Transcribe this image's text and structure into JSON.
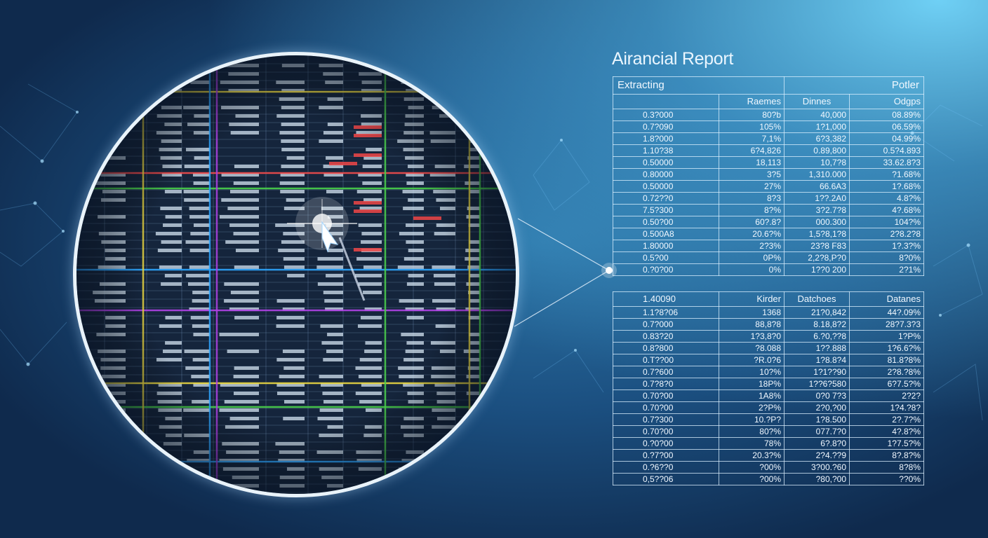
{
  "report": {
    "title": "Airancial Report",
    "table1": {
      "caption_left": "Extracting",
      "caption_right": "Potler",
      "headers": [
        "",
        "Raemes",
        "Dinnes",
        "Odgps"
      ],
      "rows": [
        [
          "0.3?000",
          "80?b",
          "40,000",
          "08.89%"
        ],
        [
          "0.7?090",
          "105%",
          "1?1,000",
          "06.59%"
        ],
        [
          "1.8?000",
          "7,1%",
          "6?3,382",
          "04.99%"
        ],
        [
          "1.10?38",
          "6?4,826",
          "0.89,800",
          "0.5?4.893"
        ],
        [
          "0.50000",
          "18,113",
          "10,7?8",
          "33.62.8?3"
        ],
        [
          "0.80000",
          "3?5",
          "1,310.000",
          "?1.68%"
        ],
        [
          "0.50000",
          "27%",
          "66.6A3",
          "1?.68%"
        ],
        [
          "0.72??0",
          "8?3",
          "1??.2A0",
          "4.8?%"
        ],
        [
          "7.5?300",
          "8?%",
          "3?2.7?8",
          "4?.68%"
        ],
        [
          "0.50?00",
          "60?.8?",
          "000.300",
          "104?%"
        ],
        [
          "0.500A8",
          "20.6?%",
          "1,5?8,1?8",
          "2?8.2?8"
        ],
        [
          "1.80000",
          "2?3%",
          "23?8 F83",
          "1?.3?%"
        ],
        [
          "0.5?00",
          "0P%",
          "2,2?8,P?0",
          "8?0%"
        ],
        [
          "0.?0?00",
          "0%",
          "1??0 200",
          "2?1%"
        ]
      ]
    },
    "table2": {
      "headers": [
        "1.40090",
        "Kirder",
        "Datchoes",
        "Datanes"
      ],
      "rows": [
        [
          "1.1?8?06",
          "1368",
          "21?0,842",
          "44?.09%"
        ],
        [
          "0.7?000",
          "88,8?8",
          "8.18,8?2",
          "28?7.3?3"
        ],
        [
          "0.83?20",
          "1?3,8?0",
          "6.?0,??8",
          "1?P%"
        ],
        [
          "0.8?800",
          "?8.088",
          "1??.888",
          "1?6.6?%"
        ],
        [
          "0.T??00",
          "?R.0?6",
          "1?8.8?4",
          "81.8?8%"
        ],
        [
          "0.7?600",
          "10?%",
          "1?1??90",
          "2?8.?8%"
        ],
        [
          "0.7?8?0",
          "18P%",
          "1??6?580",
          "6?7.5?%"
        ],
        [
          "0.70?00",
          "1A8%",
          "0?0 7?3",
          "2?2?"
        ],
        [
          "0.70?00",
          "2?P%",
          "2?0,?00",
          "1?4.?8?"
        ],
        [
          "0.7?300",
          "10.?P?",
          "1?8.500",
          "2?.7?%"
        ],
        [
          "0.70?00",
          "80?%",
          "077.7?0",
          "4?.8?%"
        ],
        [
          "0.?0?00",
          "78%",
          "6?.8?0",
          "1?7.5?%"
        ],
        [
          "0.?7?00",
          "20.3?%",
          "2?4.??9",
          "8?.8?%"
        ],
        [
          "0.?6??0",
          "?00%",
          "3?00.?60",
          "8?8%"
        ],
        [
          "0,5??06",
          "?00%",
          "?80,?00",
          "??0%"
        ]
      ]
    }
  },
  "lens": {
    "icon": "magnifier-spreadsheet",
    "cursor_icon": "pointer-arrow-icon",
    "grid_colors": [
      "#e8d540",
      "#4ad24a",
      "#2ea6ff",
      "#b042e6",
      "#f04a4a"
    ]
  }
}
